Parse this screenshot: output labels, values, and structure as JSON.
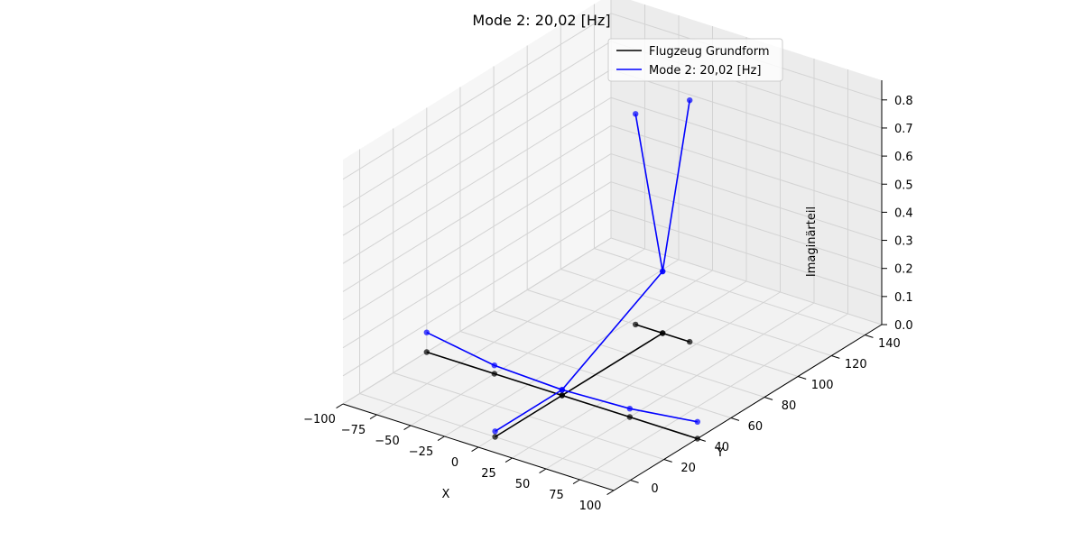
{
  "chart_data": {
    "type": "line3d",
    "title": "Mode 2: 20,02 [Hz]",
    "xlabel": "X",
    "ylabel": "Y",
    "zlabel": "Imaginärteil",
    "xlim": [
      -100,
      100
    ],
    "ylim": [
      -10,
      150
    ],
    "zlim": [
      0,
      0.87
    ],
    "x_ticks": [
      "−100",
      "−75",
      "−50",
      "−25",
      "0",
      "25",
      "50",
      "75",
      "100"
    ],
    "y_ticks": [
      "0",
      "20",
      "40",
      "60",
      "80",
      "100",
      "120",
      "140"
    ],
    "z_ticks": [
      "0.0",
      "0.1",
      "0.2",
      "0.3",
      "0.4",
      "0.5",
      "0.6",
      "0.7",
      "0.8"
    ],
    "grid": true,
    "legend_position": "top-right",
    "colors": {
      "base": "#000000",
      "mode": "#0000ff",
      "pane": "#f2f2f2",
      "grid": "#d3d3d3"
    },
    "series": [
      {
        "name": "Flugzeug Grundform",
        "color": "#000000",
        "segments": [
          [
            [
              0,
              0,
              0
            ],
            [
              0,
              40,
              0
            ],
            [
              0,
              100,
              0
            ]
          ],
          [
            [
              -100,
              40,
              0
            ],
            [
              -50,
              40,
              0
            ],
            [
              0,
              40,
              0
            ],
            [
              50,
              40,
              0
            ],
            [
              100,
              40,
              0
            ]
          ],
          [
            [
              -20,
              100,
              0
            ],
            [
              0,
              100,
              0
            ],
            [
              20,
              100,
              0
            ]
          ]
        ]
      },
      {
        "name": "Mode 2: 20,02 [Hz]",
        "color": "#0000ff",
        "segments": [
          [
            [
              0,
              0,
              0.02
            ],
            [
              0,
              40,
              0.02
            ],
            [
              0,
              100,
              0.22
            ]
          ],
          [
            [
              -100,
              40,
              0.07
            ],
            [
              -50,
              40,
              0.03
            ],
            [
              0,
              40,
              0.02
            ],
            [
              50,
              40,
              0.03
            ],
            [
              100,
              40,
              0.06
            ]
          ],
          [
            [
              -20,
              100,
              0.75
            ],
            [
              0,
              100,
              0.22
            ],
            [
              20,
              100,
              0.86
            ]
          ]
        ]
      }
    ]
  }
}
